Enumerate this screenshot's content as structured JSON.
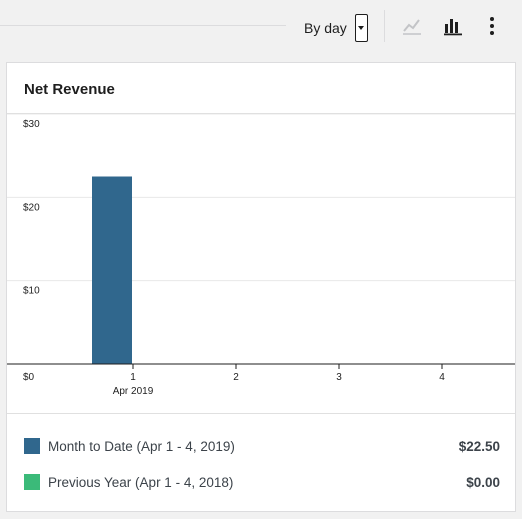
{
  "toolbar": {
    "interval_label": "By day",
    "icons": [
      "line-chart-icon",
      "bar-chart-icon",
      "more-vertical-icon"
    ]
  },
  "card": {
    "title": "Net Revenue"
  },
  "colors": {
    "current": "#30678d",
    "previous": "#3bba79",
    "line_icon_disabled": "#c3c4c7",
    "bar_icon": "#1e1e1e"
  },
  "chart_data": {
    "type": "bar",
    "y_ticks": [
      "$30",
      "$20",
      "$10",
      "$0"
    ],
    "ylim": [
      0,
      30
    ],
    "x_ticks": [
      "1",
      "2",
      "3",
      "4"
    ],
    "x_sublabel": "Apr 2019",
    "series": [
      {
        "name": "Month to Date (Apr 1 - 4, 2019)",
        "x": [
          1,
          2,
          3,
          4
        ],
        "values": [
          22.5,
          0,
          0,
          0
        ]
      },
      {
        "name": "Previous Year (Apr 1 - 4, 2018)",
        "x": [
          1,
          2,
          3,
          4
        ],
        "values": [
          0,
          0,
          0,
          0
        ]
      }
    ],
    "grid": true
  },
  "legend": [
    {
      "label": "Month to Date (Apr 1 - 4, 2019)",
      "value": "$22.50"
    },
    {
      "label": "Previous Year (Apr 1 - 4, 2018)",
      "value": "$0.00"
    }
  ]
}
